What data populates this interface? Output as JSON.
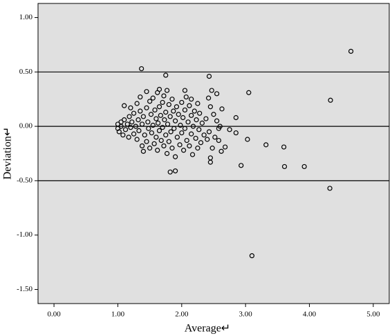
{
  "chart_data": {
    "type": "scatter",
    "xlabel": "Average↵",
    "ylabel": "Deviation↵",
    "xlim": [
      -0.25,
      5.25
    ],
    "ylim": [
      -1.63,
      1.13
    ],
    "xticks": [
      {
        "value": 0,
        "label": "0.00"
      },
      {
        "value": 1,
        "label": "1.00"
      },
      {
        "value": 2,
        "label": "2.00"
      },
      {
        "value": 3,
        "label": "3.00"
      },
      {
        "value": 4,
        "label": "4.00"
      },
      {
        "value": 5,
        "label": "5.00"
      }
    ],
    "yticks": [
      {
        "value": 1,
        "label": "1.00"
      },
      {
        "value": 0.5,
        "label": "0.50"
      },
      {
        "value": 0,
        "label": "0.00"
      },
      {
        "value": -0.5,
        "label": "-0.50"
      },
      {
        "value": -1,
        "label": "-1.00"
      },
      {
        "value": -1.5,
        "label": "-1.50"
      }
    ],
    "hlines": [
      0.5,
      0,
      -0.5
    ],
    "background": "#e0e0e0",
    "color": "#000000",
    "x": [
      4.65,
      4.33,
      4.32,
      3.1,
      3.05,
      3.03,
      3.32,
      3.6,
      3.61,
      3.92,
      2.93,
      2.85,
      1.37,
      1.75,
      2.43,
      1.82,
      1.9,
      2.45,
      2.45,
      2.68,
      2.58,
      2.05,
      1.77,
      2.47,
      2.55,
      2.63,
      2.75,
      2.85,
      1.0,
      1.0,
      1.02,
      1.05,
      1.05,
      1.08,
      1.1,
      1.1,
      1.12,
      1.15,
      1.17,
      1.18,
      1.2,
      1.2,
      1.22,
      1.25,
      1.25,
      1.28,
      1.3,
      1.3,
      1.32,
      1.33,
      1.35,
      1.35,
      1.38,
      1.38,
      1.4,
      1.4,
      1.42,
      1.45,
      1.45,
      1.45,
      1.47,
      1.48,
      1.5,
      1.5,
      1.52,
      1.53,
      1.55,
      1.55,
      1.57,
      1.58,
      1.6,
      1.6,
      1.62,
      1.62,
      1.63,
      1.65,
      1.65,
      1.67,
      1.68,
      1.7,
      1.7,
      1.72,
      1.72,
      1.73,
      1.75,
      1.75,
      1.77,
      1.78,
      1.8,
      1.8,
      1.82,
      1.83,
      1.85,
      1.85,
      1.87,
      1.88,
      1.9,
      1.9,
      1.92,
      1.93,
      1.95,
      1.97,
      1.98,
      2.0,
      2.0,
      2.02,
      2.03,
      2.05,
      2.05,
      2.07,
      2.08,
      2.1,
      2.12,
      2.12,
      2.15,
      2.15,
      2.17,
      2.18,
      2.2,
      2.22,
      2.23,
      2.25,
      2.25,
      2.27,
      2.28,
      2.3,
      2.32,
      2.35,
      2.38,
      2.4,
      2.42,
      2.43,
      2.45,
      2.48,
      2.5,
      2.52,
      2.55,
      2.58,
      2.6,
      2.62,
      2.15,
      1.65
    ],
    "y": [
      0.69,
      0.24,
      -0.57,
      -1.19,
      0.31,
      -0.12,
      -0.17,
      -0.19,
      -0.37,
      -0.37,
      -0.36,
      -0.06,
      0.53,
      0.47,
      0.46,
      -0.42,
      -0.41,
      -0.29,
      -0.33,
      -0.19,
      -0.13,
      0.33,
      0.33,
      0.33,
      0.3,
      0.16,
      -0.03,
      0.08,
      -0.02,
      0.02,
      -0.05,
      0.04,
      0.0,
      -0.08,
      0.19,
      0.06,
      -0.03,
      0.02,
      -0.1,
      0.09,
      0.17,
      -0.01,
      0.04,
      -0.07,
      0.12,
      0.0,
      0.21,
      -0.12,
      0.06,
      -0.04,
      0.14,
      0.27,
      -0.18,
      0.02,
      -0.23,
      0.09,
      -0.08,
      0.32,
      0.17,
      -0.14,
      0.04,
      -0.02,
      0.23,
      -0.2,
      0.11,
      -0.06,
      0.26,
      0.01,
      -0.16,
      0.15,
      0.07,
      -0.1,
      0.31,
      -0.22,
      0.03,
      0.18,
      -0.04,
      0.1,
      -0.13,
      0.22,
      -0.01,
      0.28,
      -0.18,
      0.06,
      0.13,
      -0.08,
      -0.25,
      0.02,
      0.2,
      -0.14,
      0.09,
      -0.05,
      0.25,
      -0.2,
      0.14,
      -0.02,
      -0.28,
      0.05,
      0.18,
      -0.1,
      0.11,
      -0.17,
      0.01,
      0.22,
      -0.06,
      0.08,
      -0.22,
      0.15,
      -0.02,
      0.27,
      -0.13,
      0.04,
      0.19,
      -0.18,
      0.1,
      -0.07,
      -0.26,
      0.0,
      0.14,
      -0.11,
      0.06,
      0.21,
      -0.2,
      -0.03,
      0.12,
      -0.15,
      0.03,
      -0.08,
      0.07,
      -0.12,
      0.26,
      -0.05,
      0.18,
      -0.2,
      0.11,
      -0.1,
      0.05,
      -0.02,
      0.0,
      -0.23,
      0.25,
      0.34
    ]
  }
}
